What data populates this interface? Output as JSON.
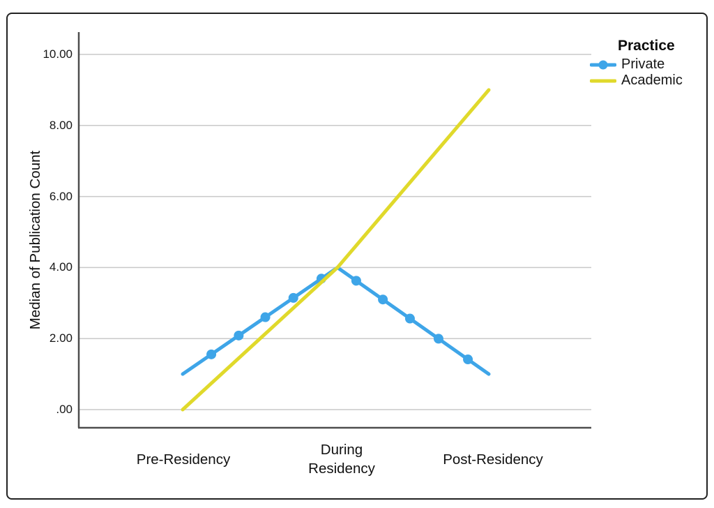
{
  "figure": {
    "background": "#ffffff",
    "border_color": "#222222",
    "gridline_color": "#c9c9c9",
    "axis_color": "#4d4d4d"
  },
  "chart_data": {
    "type": "line",
    "title": "",
    "xlabel": "",
    "ylabel": "Median of Publication Count",
    "categories": [
      "Pre-Residency",
      "During\nResidency",
      "Post-Residency"
    ],
    "y_ticks": [
      ".00",
      "2.00",
      "4.00",
      "6.00",
      "8.00",
      "10.00"
    ],
    "y_tick_values": [
      0,
      2,
      4,
      6,
      8,
      10
    ],
    "ylim": [
      0,
      10
    ],
    "grid": "horizontal",
    "legend": {
      "title": "Practice",
      "position": "top-right",
      "entries": [
        "Private",
        "Academic"
      ]
    },
    "series": [
      {
        "name": "Private",
        "color": "#3ea5e8",
        "values": [
          1.0,
          4.0,
          1.0
        ],
        "marker": "circle",
        "marker_fractions": [
          [
            0,
            0.185
          ],
          [
            0,
            0.362
          ],
          [
            0,
            0.534
          ],
          [
            0,
            0.715
          ],
          [
            0,
            0.896
          ],
          [
            1,
            0.124
          ],
          [
            1,
            0.3
          ],
          [
            1,
            0.479
          ],
          [
            1,
            0.668
          ],
          [
            1,
            0.862
          ]
        ]
      },
      {
        "name": "Academic",
        "color": "#e0d92b",
        "values": [
          0.0,
          4.0,
          9.0
        ],
        "marker": "none",
        "marker_fractions": []
      }
    ]
  }
}
